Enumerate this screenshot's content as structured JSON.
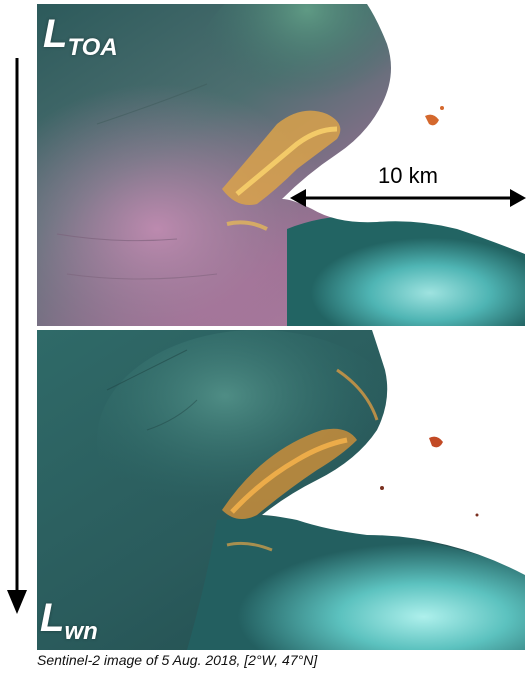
{
  "labels": {
    "top_main": "L",
    "top_sub": "TOA",
    "bottom_main": "L",
    "bottom_sub": "wn"
  },
  "scale_bar": {
    "label": "10 km"
  },
  "caption": "Sentinel-2 image of 5 Aug. 2018, [2°W, 47°N]",
  "colors": {
    "deep_water": "#1f4f52",
    "turquoise_water": "#5fc4c0",
    "pink_haze": "#b57fa3",
    "algae_bloom": "#f2b44a",
    "land": "#ffffff",
    "arrow": "#000000"
  }
}
